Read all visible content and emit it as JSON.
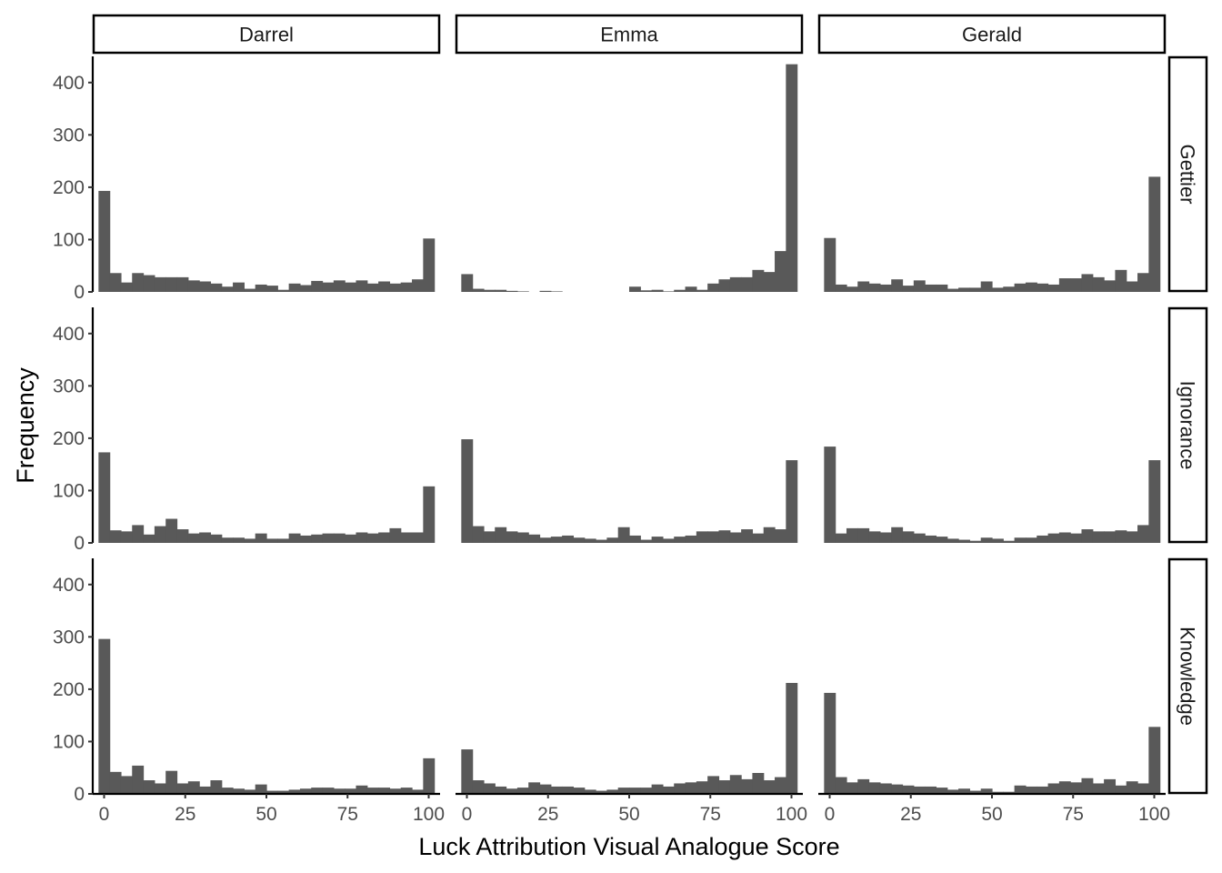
{
  "chart_data": {
    "type": "bar",
    "subtype": "faceted-histogram",
    "xlabel": "Luck Attribution Visual Analogue Score",
    "ylabel": "Frequency",
    "xlim": [
      -3.5,
      103.5
    ],
    "ylim": [
      0,
      450
    ],
    "x_ticks": [
      0,
      25,
      50,
      75,
      100
    ],
    "y_ticks": [
      0,
      100,
      200,
      300,
      400
    ],
    "columns": [
      "Darrel",
      "Emma",
      "Gerald"
    ],
    "rows": [
      "Gettier",
      "Ignorance",
      "Knowledge"
    ],
    "bins": 30,
    "bar_color": "#595959",
    "bin_centers": [
      0.0,
      3.45,
      6.9,
      10.34,
      13.79,
      17.24,
      20.69,
      24.14,
      27.59,
      31.03,
      34.48,
      37.93,
      41.38,
      44.83,
      48.28,
      51.72,
      55.17,
      58.62,
      62.07,
      65.52,
      68.97,
      72.41,
      75.86,
      79.31,
      82.76,
      86.21,
      89.66,
      93.1,
      96.55,
      100.0
    ],
    "panels": [
      {
        "column": "Darrel",
        "row": "Gettier",
        "values": [
          193,
          36,
          18,
          36,
          32,
          28,
          28,
          28,
          22,
          20,
          16,
          10,
          18,
          6,
          14,
          12,
          4,
          16,
          13,
          21,
          18,
          22,
          18,
          22,
          16,
          20,
          16,
          18,
          24,
          102
        ]
      },
      {
        "column": "Emma",
        "row": "Gettier",
        "values": [
          34,
          6,
          4,
          4,
          2,
          1,
          0,
          2,
          1,
          0,
          0,
          0,
          0,
          0,
          0,
          10,
          3,
          4,
          1,
          4,
          10,
          4,
          16,
          24,
          28,
          28,
          42,
          38,
          78,
          435
        ]
      },
      {
        "column": "Gerald",
        "row": "Gettier",
        "values": [
          103,
          14,
          10,
          20,
          16,
          14,
          24,
          12,
          22,
          14,
          14,
          6,
          8,
          8,
          20,
          8,
          10,
          16,
          18,
          16,
          14,
          26,
          26,
          34,
          28,
          22,
          42,
          20,
          36,
          220
        ]
      },
      {
        "column": "Darrel",
        "row": "Ignorance",
        "values": [
          173,
          24,
          22,
          34,
          16,
          32,
          46,
          26,
          18,
          20,
          16,
          10,
          10,
          8,
          18,
          8,
          8,
          18,
          14,
          16,
          18,
          18,
          16,
          20,
          18,
          20,
          28,
          20,
          20,
          108
        ]
      },
      {
        "column": "Emma",
        "row": "Ignorance",
        "values": [
          198,
          32,
          22,
          30,
          22,
          20,
          16,
          10,
          12,
          14,
          10,
          8,
          6,
          10,
          30,
          14,
          6,
          12,
          8,
          12,
          14,
          22,
          22,
          24,
          20,
          26,
          18,
          30,
          26,
          158
        ]
      },
      {
        "column": "Gerald",
        "row": "Ignorance",
        "values": [
          184,
          18,
          28,
          28,
          22,
          20,
          30,
          22,
          18,
          14,
          12,
          8,
          6,
          4,
          10,
          8,
          4,
          10,
          10,
          14,
          18,
          20,
          18,
          26,
          22,
          22,
          24,
          22,
          34,
          158
        ]
      },
      {
        "column": "Darrel",
        "row": "Knowledge",
        "values": [
          296,
          42,
          34,
          54,
          26,
          20,
          44,
          20,
          24,
          14,
          26,
          12,
          10,
          8,
          18,
          6,
          6,
          8,
          10,
          12,
          12,
          10,
          10,
          16,
          12,
          12,
          10,
          12,
          8,
          68
        ]
      },
      {
        "column": "Emma",
        "row": "Knowledge",
        "values": [
          85,
          26,
          20,
          14,
          10,
          12,
          22,
          18,
          14,
          14,
          12,
          8,
          6,
          8,
          12,
          12,
          12,
          18,
          14,
          20,
          22,
          24,
          34,
          26,
          36,
          28,
          40,
          26,
          32,
          212
        ]
      },
      {
        "column": "Gerald",
        "row": "Knowledge",
        "values": [
          193,
          32,
          22,
          28,
          22,
          20,
          18,
          16,
          14,
          14,
          12,
          8,
          10,
          6,
          10,
          4,
          4,
          16,
          14,
          14,
          20,
          24,
          22,
          30,
          20,
          28,
          16,
          24,
          20,
          128
        ]
      }
    ]
  }
}
